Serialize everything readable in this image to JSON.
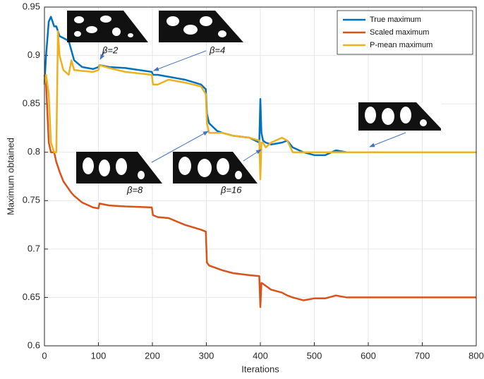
{
  "chart_data": {
    "type": "line",
    "xlabel": "Iterations",
    "ylabel": "Maximum obtained",
    "x": [
      0,
      3,
      8,
      12,
      18,
      22,
      25,
      28,
      35,
      45,
      50,
      55,
      70,
      90,
      100,
      102,
      120,
      150,
      199,
      201,
      210,
      230,
      260,
      290,
      299,
      301,
      305,
      320,
      330,
      350,
      380,
      398,
      400,
      402,
      405,
      410,
      420,
      440,
      450,
      460,
      480,
      500,
      520,
      540,
      560,
      600,
      700,
      800
    ],
    "series": [
      {
        "name": "True maximum",
        "color": "#0072bd",
        "values": [
          0.87,
          0.9,
          0.935,
          0.94,
          0.93,
          0.93,
          0.925,
          0.92,
          0.918,
          0.915,
          0.905,
          0.895,
          0.888,
          0.886,
          0.888,
          0.89,
          0.888,
          0.887,
          0.883,
          0.88,
          0.88,
          0.878,
          0.875,
          0.87,
          0.865,
          0.84,
          0.83,
          0.822,
          0.82,
          0.817,
          0.815,
          0.81,
          0.855,
          0.82,
          0.812,
          0.81,
          0.808,
          0.81,
          0.812,
          0.805,
          0.8,
          0.797,
          0.797,
          0.802,
          0.8,
          0.8,
          0.8,
          0.8
        ]
      },
      {
        "name": "Scaled maximum",
        "color": "#d95319",
        "values": [
          0.88,
          0.87,
          0.81,
          0.8,
          0.8,
          0.79,
          0.785,
          0.78,
          0.77,
          0.762,
          0.758,
          0.755,
          0.748,
          0.743,
          0.742,
          0.747,
          0.745,
          0.744,
          0.743,
          0.735,
          0.733,
          0.732,
          0.725,
          0.72,
          0.718,
          0.686,
          0.683,
          0.68,
          0.678,
          0.675,
          0.673,
          0.672,
          0.64,
          0.665,
          0.664,
          0.662,
          0.658,
          0.655,
          0.652,
          0.65,
          0.647,
          0.649,
          0.649,
          0.652,
          0.65,
          0.65,
          0.65,
          0.65
        ]
      },
      {
        "name": "P-mean maximum",
        "color": "#edb120",
        "values": [
          0.87,
          0.88,
          0.86,
          0.81,
          0.8,
          0.8,
          0.925,
          0.9,
          0.885,
          0.88,
          0.895,
          0.885,
          0.884,
          0.883,
          0.885,
          0.89,
          0.887,
          0.883,
          0.88,
          0.87,
          0.87,
          0.875,
          0.872,
          0.868,
          0.86,
          0.83,
          0.82,
          0.82,
          0.82,
          0.817,
          0.815,
          0.812,
          0.772,
          0.81,
          0.81,
          0.805,
          0.81,
          0.815,
          0.812,
          0.8,
          0.8,
          0.8,
          0.8,
          0.8,
          0.8,
          0.8,
          0.8,
          0.8
        ]
      }
    ],
    "xlim": [
      0,
      800
    ],
    "xticks": [
      0,
      100,
      200,
      300,
      400,
      500,
      600,
      700,
      800
    ],
    "ylim": [
      0.6,
      0.95
    ],
    "yticks": [
      0.6,
      0.65,
      0.7,
      0.75,
      0.8,
      0.85,
      0.9,
      0.95
    ],
    "grid": true,
    "legend": "top-right",
    "annotations": [
      "β=2",
      "β=4",
      "β=8",
      "β=16"
    ]
  }
}
